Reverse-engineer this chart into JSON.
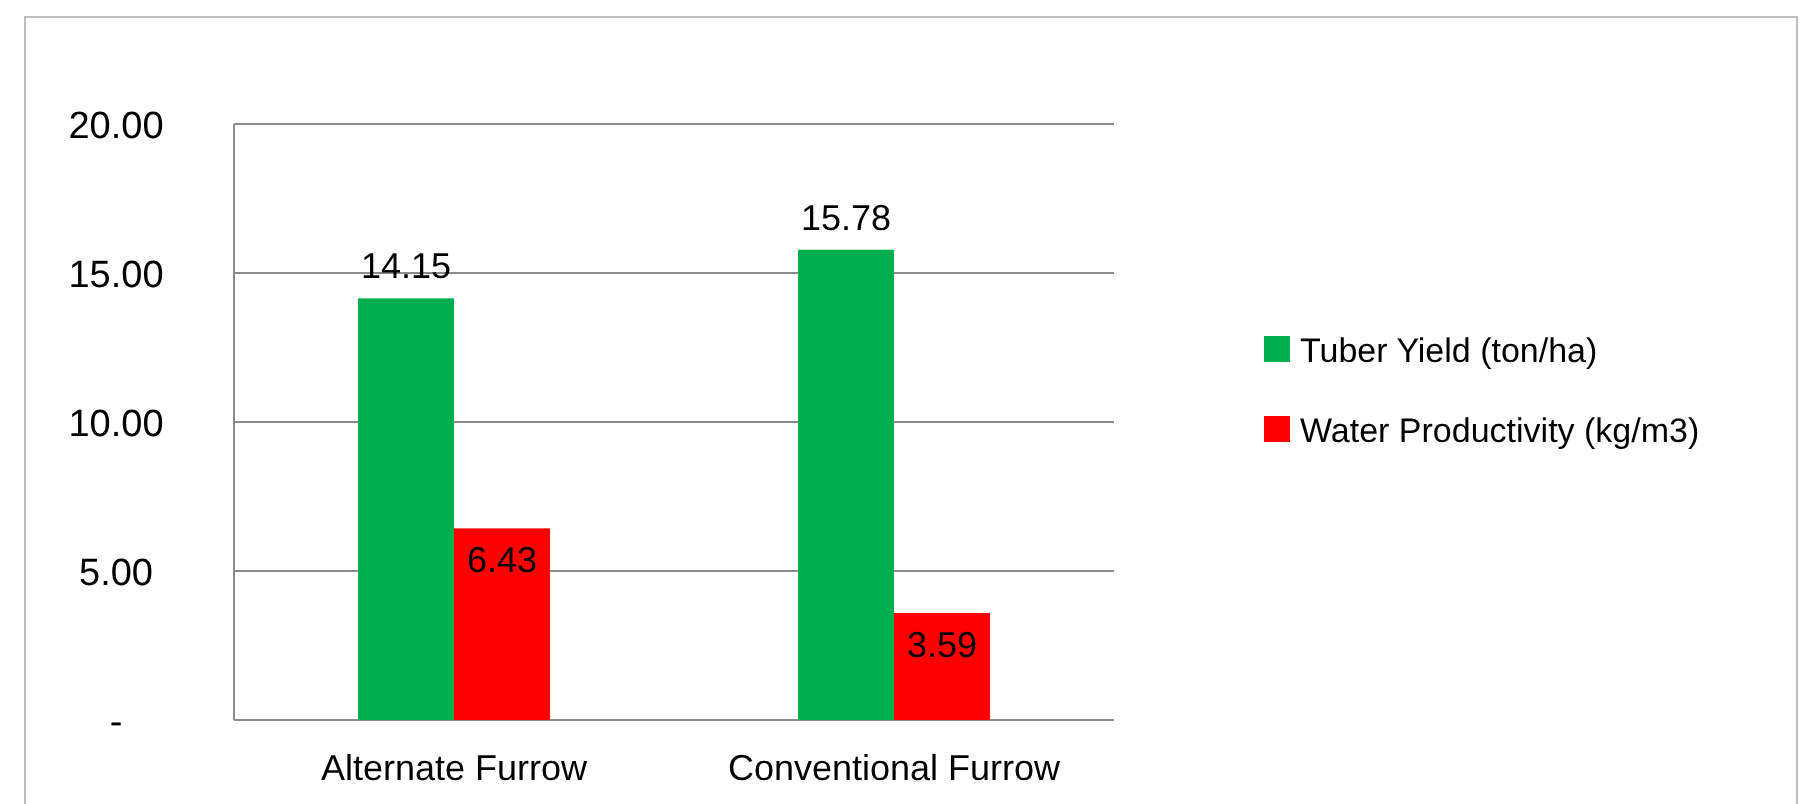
{
  "chart_data": {
    "type": "bar",
    "categories": [
      "Alternate Furrow",
      "Conventional Furrow"
    ],
    "series": [
      {
        "name": "Tuber Yield (ton/ha)",
        "color": "#00b050",
        "values": [
          14.15,
          15.78
        ]
      },
      {
        "name": "Water Productivity (kg/m3)",
        "color": "#ff0000",
        "values": [
          6.43,
          3.59
        ]
      }
    ],
    "ylim": [
      0,
      20
    ],
    "yticks": [
      {
        "value": 0,
        "label": "-"
      },
      {
        "value": 5,
        "label": "5.00"
      },
      {
        "value": 10,
        "label": "10.00"
      },
      {
        "value": 15,
        "label": "15.00"
      },
      {
        "value": 20,
        "label": "20.00"
      }
    ],
    "grid": "y",
    "legend": "right",
    "data_labels": true
  }
}
